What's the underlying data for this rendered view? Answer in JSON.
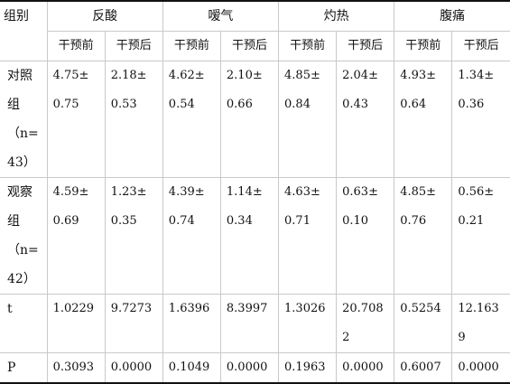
{
  "header": {
    "group_label": "组别",
    "symptoms": [
      "反酸",
      "嗳气",
      "灼热",
      "腹痛"
    ],
    "before": "干预前",
    "after": "干预后"
  },
  "rows": [
    {
      "label_lines": [
        "对照",
        "组",
        "（n=",
        "43）"
      ],
      "cells": [
        [
          "4.75±",
          "0.75"
        ],
        [
          "2.18±",
          "0.53"
        ],
        [
          "4.62±",
          "0.54"
        ],
        [
          "2.10±",
          "0.66"
        ],
        [
          "4.85±",
          "0.84"
        ],
        [
          "2.04±",
          "0.43"
        ],
        [
          "4.93±",
          "0.64"
        ],
        [
          "1.34±",
          "0.36"
        ]
      ]
    },
    {
      "label_lines": [
        "观察",
        "组",
        "（n=",
        "42）"
      ],
      "cells": [
        [
          "4.59±",
          "0.69"
        ],
        [
          "1.23±",
          "0.35"
        ],
        [
          "4.39±",
          "0.74"
        ],
        [
          "1.14±",
          "0.34"
        ],
        [
          "4.63±",
          "0.71"
        ],
        [
          "0.63±",
          "0.10"
        ],
        [
          "4.85±",
          "0.76"
        ],
        [
          "0.56±",
          "0.21"
        ]
      ]
    }
  ],
  "t_row": {
    "label": "t",
    "cells": [
      [
        "1.0229"
      ],
      [
        "9.7273"
      ],
      [
        "1.6396"
      ],
      [
        "8.3997"
      ],
      [
        "1.3026"
      ],
      [
        "20.708",
        "2"
      ],
      [
        "0.5254"
      ],
      [
        "12.163",
        "9"
      ]
    ]
  },
  "p_row": {
    "label": "P",
    "cells": [
      [
        "0.3093"
      ],
      [
        "0.0000"
      ],
      [
        "0.1049"
      ],
      [
        "0.0000"
      ],
      [
        "0.1963"
      ],
      [
        "0.0000"
      ],
      [
        "0.6007"
      ],
      [
        "0.0000"
      ]
    ]
  }
}
